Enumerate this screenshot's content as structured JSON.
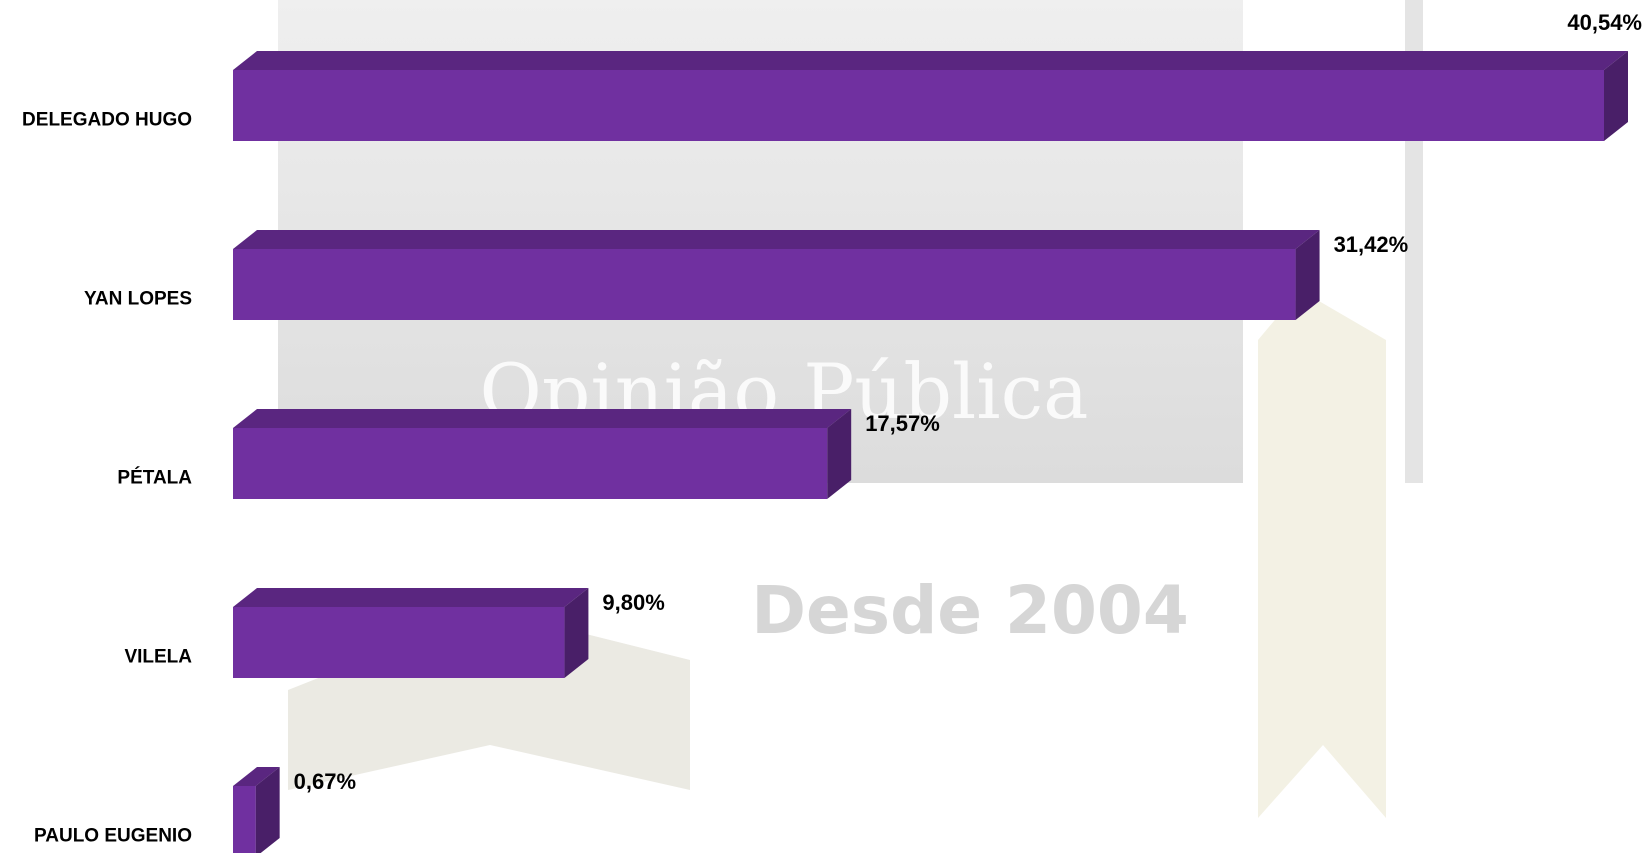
{
  "chart_data": {
    "type": "bar",
    "orientation": "horizontal",
    "categories": [
      "DELEGADO HUGO",
      "YAN LOPES",
      "PÉTALA",
      "VILELA",
      "PAULO EUGENIO"
    ],
    "values": [
      40.54,
      31.42,
      17.57,
      9.8,
      0.67
    ],
    "value_labels": [
      "40,54%",
      "31,42%",
      "17,57%",
      "9,80%",
      "0,67%"
    ],
    "color": "#7030a0",
    "watermark": [
      "Opinião Pública",
      "Desde 2004"
    ]
  }
}
